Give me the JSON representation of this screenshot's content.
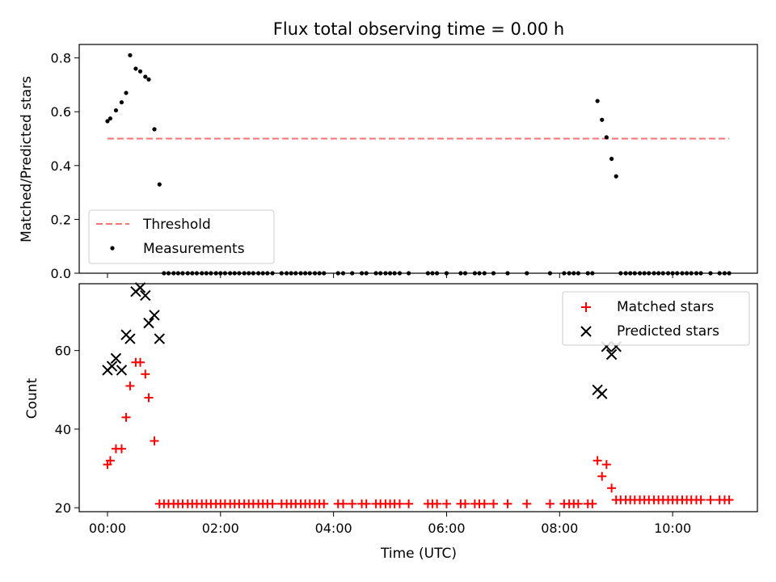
{
  "chart_data": [
    {
      "type": "scatter",
      "title": "Flux total observing time = 0.00 h",
      "xlabel": "",
      "ylabel": "Matched/Predicted stars",
      "xlim": [
        -0.5,
        11.5
      ],
      "ylim": [
        0.0,
        0.85
      ],
      "yticks": [
        0.0,
        0.2,
        0.4,
        0.6,
        0.8
      ],
      "ytick_labels": [
        "0.0",
        "0.2",
        "0.4",
        "0.6",
        "0.8"
      ],
      "legend_position": "lower-left",
      "series": [
        {
          "name": "Threshold",
          "kind": "dashed-line",
          "color": "#ff7070",
          "x": [
            0.0,
            11.0
          ],
          "y": [
            0.5,
            0.5
          ]
        },
        {
          "name": "Measurements",
          "kind": "dot",
          "color": "#000000",
          "x": [
            0.0,
            0.05,
            0.15,
            0.25,
            0.33,
            0.4,
            0.5,
            0.58,
            0.67,
            0.73,
            0.83,
            0.92,
            8.67,
            8.75,
            8.83,
            8.92,
            9.0,
            1.0,
            1.08,
            1.17,
            1.25,
            1.33,
            1.42,
            1.5,
            1.58,
            1.67,
            1.75,
            1.83,
            1.92,
            2.0,
            2.08,
            2.17,
            2.25,
            2.33,
            2.42,
            2.5,
            2.58,
            2.67,
            2.75,
            2.83,
            2.92,
            3.08,
            3.17,
            3.25,
            3.33,
            3.42,
            3.5,
            3.58,
            3.67,
            3.75,
            3.83,
            4.08,
            4.17,
            4.33,
            4.5,
            4.58,
            4.75,
            4.83,
            4.92,
            5.0,
            5.08,
            5.17,
            5.33,
            5.67,
            5.75,
            5.83,
            6.0,
            6.25,
            6.33,
            6.5,
            6.58,
            6.67,
            6.83,
            7.08,
            7.42,
            7.83,
            8.08,
            8.17,
            8.25,
            8.33,
            8.5,
            8.58,
            9.08,
            9.17,
            9.25,
            9.33,
            9.42,
            9.5,
            9.58,
            9.67,
            9.75,
            9.83,
            9.92,
            10.0,
            10.08,
            10.17,
            10.25,
            10.33,
            10.42,
            10.5,
            10.67,
            10.83,
            10.92,
            11.0
          ],
          "y": [
            0.565,
            0.575,
            0.605,
            0.635,
            0.67,
            0.81,
            0.76,
            0.75,
            0.73,
            0.72,
            0.535,
            0.33,
            0.64,
            0.57,
            0.505,
            0.425,
            0.36,
            0,
            0,
            0,
            0,
            0,
            0,
            0,
            0,
            0,
            0,
            0,
            0,
            0,
            0,
            0,
            0,
            0,
            0,
            0,
            0,
            0,
            0,
            0,
            0,
            0,
            0,
            0,
            0,
            0,
            0,
            0,
            0,
            0,
            0,
            0,
            0,
            0,
            0,
            0,
            0,
            0,
            0,
            0,
            0,
            0,
            0,
            0,
            0,
            0,
            0,
            0,
            0,
            0,
            0,
            0,
            0,
            0,
            0,
            0,
            0,
            0,
            0,
            0,
            0,
            0,
            0,
            0,
            0,
            0,
            0,
            0,
            0,
            0,
            0,
            0,
            0,
            0,
            0,
            0,
            0,
            0,
            0,
            0,
            0,
            0,
            0,
            0
          ]
        }
      ]
    },
    {
      "type": "scatter",
      "title": "",
      "xlabel": "Time (UTC)",
      "ylabel": "Count",
      "xlim": [
        -0.5,
        11.5
      ],
      "ylim": [
        19,
        77
      ],
      "yticks": [
        20,
        40,
        60
      ],
      "ytick_labels": [
        "20",
        "40",
        "60"
      ],
      "xticks": [
        0,
        2,
        4,
        6,
        8,
        10
      ],
      "xtick_labels": [
        "00:00",
        "02:00",
        "04:00",
        "06:00",
        "08:00",
        "10:00"
      ],
      "legend_position": "upper-right",
      "series": [
        {
          "name": "Matched stars",
          "marker": "+",
          "color": "#ff0000",
          "x": [
            0.0,
            0.05,
            0.15,
            0.25,
            0.33,
            0.4,
            0.5,
            0.58,
            0.67,
            0.73,
            0.83,
            8.67,
            8.75,
            8.83,
            8.92,
            0.92,
            1.0,
            1.08,
            1.17,
            1.25,
            1.33,
            1.42,
            1.5,
            1.58,
            1.67,
            1.75,
            1.83,
            1.92,
            2.0,
            2.08,
            2.17,
            2.25,
            2.33,
            2.42,
            2.5,
            2.58,
            2.67,
            2.75,
            2.83,
            2.92,
            3.08,
            3.17,
            3.25,
            3.33,
            3.42,
            3.5,
            3.58,
            3.67,
            3.75,
            3.83,
            4.08,
            4.17,
            4.33,
            4.5,
            4.58,
            4.75,
            4.83,
            4.92,
            5.0,
            5.08,
            5.17,
            5.33,
            5.67,
            5.75,
            5.83,
            6.0,
            6.25,
            6.33,
            6.5,
            6.58,
            6.67,
            6.83,
            7.08,
            7.42,
            7.83,
            8.08,
            8.17,
            8.25,
            8.33,
            8.5,
            8.58,
            9.0,
            9.08,
            9.17,
            9.25,
            9.33,
            9.42,
            9.5,
            9.58,
            9.67,
            9.75,
            9.83,
            9.92,
            10.0,
            10.08,
            10.17,
            10.25,
            10.33,
            10.42,
            10.5,
            10.67,
            10.83,
            10.92,
            11.0
          ],
          "y": [
            31,
            32,
            35,
            35,
            43,
            51,
            57,
            57,
            54,
            48,
            37,
            32,
            28,
            31,
            25,
            21,
            21,
            21,
            21,
            21,
            21,
            21,
            21,
            21,
            21,
            21,
            21,
            21,
            21,
            21,
            21,
            21,
            21,
            21,
            21,
            21,
            21,
            21,
            21,
            21,
            21,
            21,
            21,
            21,
            21,
            21,
            21,
            21,
            21,
            21,
            21,
            21,
            21,
            21,
            21,
            21,
            21,
            21,
            21,
            21,
            21,
            21,
            21,
            21,
            21,
            21,
            21,
            21,
            21,
            21,
            21,
            21,
            21,
            21,
            21,
            21,
            21,
            21,
            21,
            21,
            21,
            22,
            22,
            22,
            22,
            22,
            22,
            22,
            22,
            22,
            22,
            22,
            22,
            22,
            22,
            22,
            22,
            22,
            22,
            22,
            22,
            22,
            22,
            22
          ]
        },
        {
          "name": "Predicted stars",
          "marker": "x",
          "color": "#000000",
          "x": [
            0.0,
            0.08,
            0.15,
            0.25,
            0.33,
            0.4,
            0.5,
            0.58,
            0.67,
            0.73,
            0.83,
            0.92,
            8.67,
            8.75,
            8.83,
            8.92,
            9.0
          ],
          "y": [
            55,
            56,
            58,
            55,
            64,
            63,
            75,
            76,
            74,
            67,
            69,
            63,
            50,
            49,
            61,
            59,
            61
          ]
        }
      ]
    }
  ]
}
